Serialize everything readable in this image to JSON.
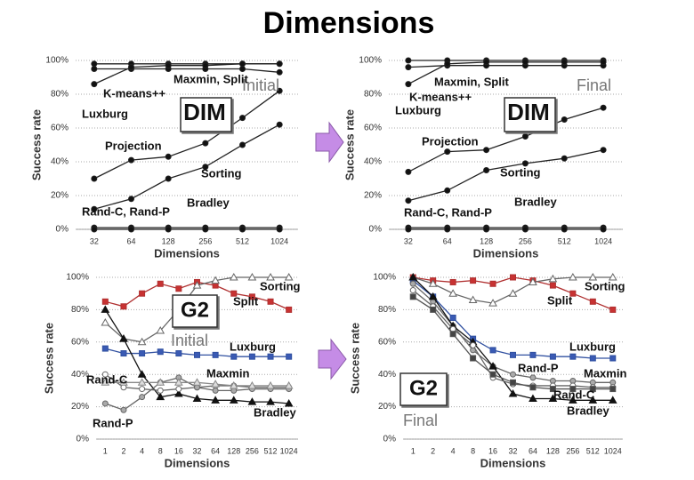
{
  "title": "Dimensions",
  "chart_data": [
    {
      "type": "line",
      "xlabel": "Dimensions",
      "ylabel": "Success rate",
      "grid": true,
      "categories": [
        "32",
        "64",
        "128",
        "256",
        "512",
        "1024"
      ],
      "ylim": [
        0,
        100
      ],
      "yticks": [
        {
          "value": 0,
          "label": "0%"
        },
        {
          "value": 20,
          "label": "20%"
        },
        {
          "value": 40,
          "label": "40%"
        },
        {
          "value": 60,
          "label": "60%"
        },
        {
          "value": 80,
          "label": "80%"
        },
        {
          "value": 100,
          "label": "100%"
        }
      ],
      "series": [
        {
          "color": "#222222",
          "fill": "#111111",
          "marker": "circle",
          "values": [
            98,
            98,
            98,
            98,
            98,
            98
          ]
        },
        {
          "color": "#222222",
          "fill": "#111111",
          "marker": "circle",
          "values": [
            95,
            95,
            95,
            95,
            95,
            93
          ]
        },
        {
          "color": "#222222",
          "fill": "#111111",
          "marker": "circle",
          "values": [
            86,
            96,
            97,
            97,
            98,
            98
          ]
        },
        {
          "color": "#222222",
          "fill": "#111111",
          "marker": "circle",
          "values": [
            30,
            41,
            43,
            51,
            66,
            82
          ]
        },
        {
          "color": "#222222",
          "fill": "#111111",
          "marker": "circle",
          "values": [
            12,
            18,
            30,
            37,
            50,
            62
          ]
        },
        {
          "color": "#222222",
          "fill": "#111111",
          "marker": "circle",
          "values": [
            1,
            1,
            1,
            1,
            1,
            1
          ]
        },
        {
          "color": "#222222",
          "fill": "#111111",
          "marker": "circle",
          "values": [
            0,
            0,
            0,
            0,
            0,
            0
          ]
        }
      ],
      "annotations": [
        "Maxmin, Split",
        "K-means++",
        "Luxburg",
        "DIM",
        "Initial",
        "Projection",
        "Sorting",
        "Bradley",
        "Rand-C, Rand-P"
      ]
    },
    {
      "type": "line",
      "xlabel": "Dimensions",
      "ylabel": "Success rate",
      "grid": true,
      "categories": [
        "32",
        "64",
        "128",
        "256",
        "512",
        "1024"
      ],
      "ylim": [
        0,
        100
      ],
      "yticks": [
        {
          "value": 0,
          "label": "0%"
        },
        {
          "value": 20,
          "label": "20%"
        },
        {
          "value": 40,
          "label": "40%"
        },
        {
          "value": 60,
          "label": "60%"
        },
        {
          "value": 80,
          "label": "80%"
        },
        {
          "value": 100,
          "label": "100%"
        }
      ],
      "series": [
        {
          "color": "#222222",
          "fill": "#111111",
          "marker": "circle",
          "values": [
            100,
            100,
            100,
            100,
            100,
            100
          ]
        },
        {
          "color": "#222222",
          "fill": "#111111",
          "marker": "circle",
          "values": [
            96,
            97,
            97,
            97,
            97,
            97
          ]
        },
        {
          "color": "#222222",
          "fill": "#111111",
          "marker": "circle",
          "values": [
            86,
            98,
            99,
            99,
            99,
            99
          ]
        },
        {
          "color": "#222222",
          "fill": "#111111",
          "marker": "circle",
          "values": [
            34,
            46,
            47,
            55,
            65,
            72
          ]
        },
        {
          "color": "#222222",
          "fill": "#111111",
          "marker": "circle",
          "values": [
            17,
            23,
            35,
            39,
            42,
            47
          ]
        },
        {
          "color": "#222222",
          "fill": "#111111",
          "marker": "circle",
          "values": [
            1,
            1,
            1,
            1,
            1,
            1
          ]
        },
        {
          "color": "#222222",
          "fill": "#111111",
          "marker": "circle",
          "values": [
            0,
            0,
            0,
            0,
            0,
            0
          ]
        }
      ],
      "annotations": [
        "Maxmin, Split",
        "K-means++",
        "Luxburg",
        "DIM",
        "Final",
        "Projection",
        "Sorting",
        "Bradley",
        "Rand-C, Rand-P"
      ]
    },
    {
      "type": "line",
      "xlabel": "Dimensions",
      "ylabel": "Success rate",
      "grid": true,
      "categories": [
        "1",
        "2",
        "4",
        "8",
        "16",
        "32",
        "64",
        "128",
        "256",
        "512",
        "1024"
      ],
      "ylim": [
        0,
        100
      ],
      "yticks": [
        {
          "value": 0,
          "label": "0%"
        },
        {
          "value": 20,
          "label": "20%"
        },
        {
          "value": 40,
          "label": "40%"
        },
        {
          "value": 60,
          "label": "60%"
        },
        {
          "value": 80,
          "label": "80%"
        },
        {
          "value": 100,
          "label": "100%"
        }
      ],
      "series": [
        {
          "color": "#b03030",
          "fill": "#c83232",
          "marker": "square",
          "values": [
            85,
            82,
            90,
            96,
            93,
            97,
            95,
            90,
            88,
            85,
            80
          ]
        },
        {
          "color": "#3050a0",
          "fill": "#3a5ab4",
          "marker": "square",
          "values": [
            56,
            53,
            53,
            54,
            53,
            52,
            52,
            51,
            51,
            51,
            51
          ]
        },
        {
          "color": "#666666",
          "fill": "#ffffff",
          "marker": "triangle",
          "values": [
            72,
            62,
            60,
            67,
            80,
            95,
            98,
            100,
            100,
            100,
            100
          ]
        },
        {
          "color": "#111111",
          "fill": "#111111",
          "marker": "triangle",
          "values": [
            80,
            62,
            40,
            26,
            28,
            25,
            24,
            24,
            23,
            23,
            22
          ]
        },
        {
          "color": "#666666",
          "fill": "#ffffff",
          "marker": "circle",
          "values": [
            40,
            32,
            31,
            30,
            31,
            32,
            33,
            33,
            32,
            32,
            32
          ]
        },
        {
          "color": "#666666",
          "fill": "#aaaaaa",
          "marker": "circle",
          "values": [
            22,
            18,
            26,
            35,
            38,
            32,
            30,
            30,
            31,
            31,
            31
          ]
        },
        {
          "color": "#888888",
          "fill": "#dddddd",
          "marker": "triangle",
          "values": [
            35,
            35,
            35,
            35,
            35,
            35,
            34,
            33,
            33,
            33,
            33
          ]
        }
      ],
      "annotations": [
        "Sorting",
        "G2",
        "Split",
        "Initial",
        "Luxburg",
        "Maxmin",
        "Rand-C",
        "Bradley",
        "Rand-P"
      ]
    },
    {
      "type": "line",
      "xlabel": "Dimensions",
      "ylabel": "Success rate",
      "grid": true,
      "categories": [
        "1",
        "2",
        "4",
        "8",
        "16",
        "32",
        "64",
        "128",
        "256",
        "512",
        "1024"
      ],
      "ylim": [
        0,
        100
      ],
      "yticks": [
        {
          "value": 0,
          "label": "0%"
        },
        {
          "value": 20,
          "label": "20%"
        },
        {
          "value": 40,
          "label": "40%"
        },
        {
          "value": 60,
          "label": "60%"
        },
        {
          "value": 80,
          "label": "80%"
        },
        {
          "value": 100,
          "label": "100%"
        }
      ],
      "series": [
        {
          "color": "#b03030",
          "fill": "#c83232",
          "marker": "square",
          "values": [
            100,
            98,
            97,
            98,
            96,
            100,
            98,
            95,
            90,
            85,
            80
          ]
        },
        {
          "color": "#666666",
          "fill": "#ffffff",
          "marker": "triangle",
          "values": [
            100,
            96,
            90,
            86,
            84,
            90,
            97,
            99,
            100,
            100,
            100
          ]
        },
        {
          "color": "#3050a0",
          "fill": "#3a5ab4",
          "marker": "square",
          "values": [
            98,
            88,
            75,
            62,
            55,
            52,
            52,
            51,
            51,
            50,
            50
          ]
        },
        {
          "color": "#666666",
          "fill": "#aaaaaa",
          "marker": "circle",
          "values": [
            96,
            85,
            70,
            55,
            45,
            40,
            38,
            36,
            36,
            35,
            35
          ]
        },
        {
          "color": "#111111",
          "fill": "#111111",
          "marker": "triangle",
          "values": [
            100,
            88,
            70,
            60,
            45,
            28,
            25,
            25,
            24,
            24,
            24
          ]
        },
        {
          "color": "#666666",
          "fill": "#ffffff",
          "marker": "circle",
          "values": [
            92,
            82,
            68,
            58,
            38,
            34,
            33,
            33,
            33,
            32,
            32
          ]
        },
        {
          "color": "#555555",
          "fill": "#444444",
          "marker": "square",
          "values": [
            88,
            80,
            65,
            50,
            40,
            35,
            32,
            31,
            31,
            31,
            31
          ]
        }
      ],
      "annotations": [
        "Sorting",
        "Split",
        "Luxburg",
        "Rand-P",
        "Maxmin",
        "G2",
        "Rand-C",
        "Bradley",
        "Final"
      ]
    }
  ]
}
